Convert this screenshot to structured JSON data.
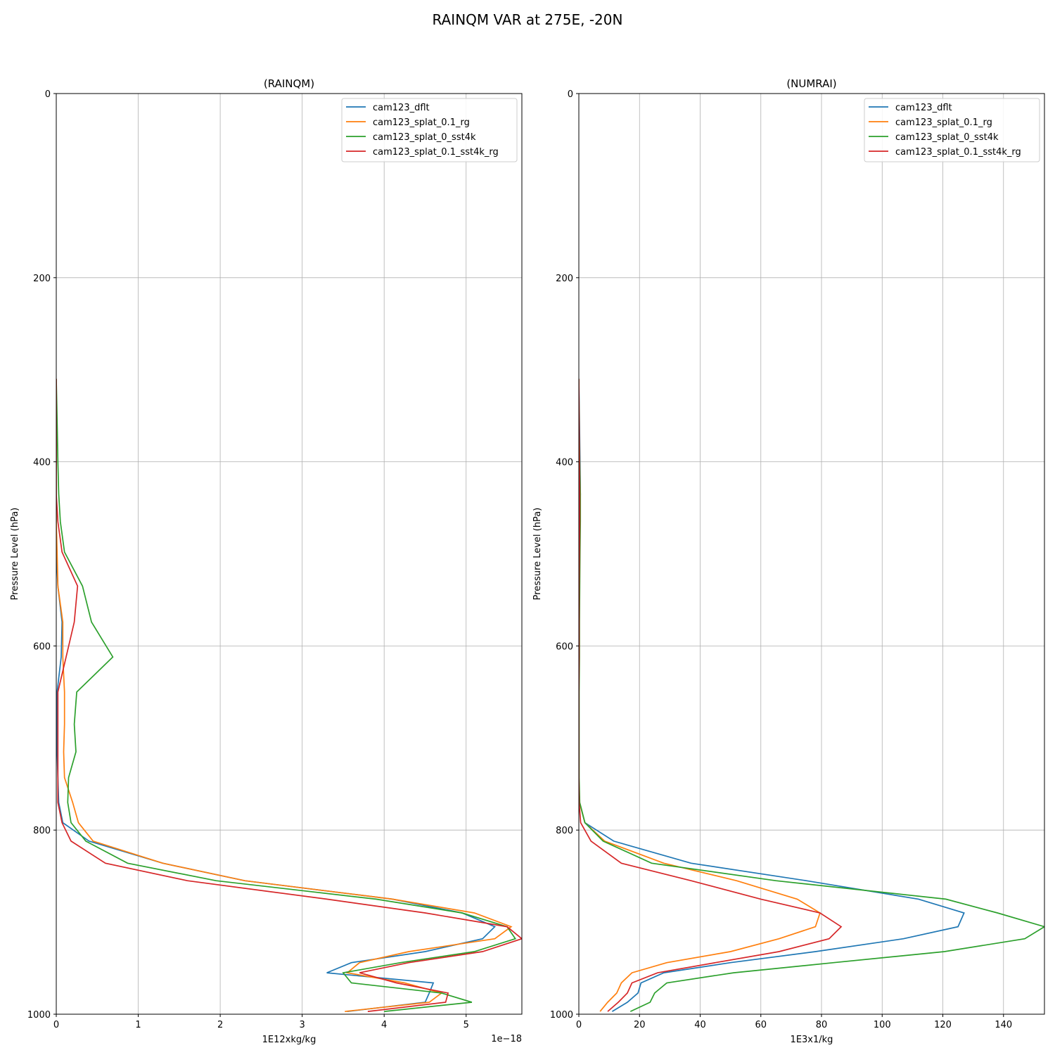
{
  "figure": {
    "suptitle": "RAINQM VAR at 275E, -20N"
  },
  "chart_data": [
    {
      "type": "line",
      "title": "(RAINQM)",
      "xlabel": "1E12xkg/kg",
      "ylabel": "Pressure Level (hPa)",
      "x_offset_text": "1e−18",
      "xlim": [
        0,
        5.68
      ],
      "ylim": [
        1000,
        0
      ],
      "xticks": [
        0,
        1,
        2,
        3,
        4,
        5
      ],
      "yticks": [
        0,
        200,
        400,
        600,
        800,
        1000
      ],
      "grid": true,
      "legend_position": "upper right",
      "levels": [
        310,
        355,
        400,
        435,
        465,
        498,
        535,
        574,
        612,
        650,
        685,
        715,
        743,
        770,
        792,
        812,
        836,
        855,
        875,
        890,
        905,
        918,
        932,
        944,
        955,
        966,
        977,
        987,
        997
      ],
      "series": [
        {
          "name": "cam123_dflt",
          "color": "#1f77b4",
          "x": [
            0.0,
            0.0,
            0.0,
            0.0,
            0.0,
            0.0,
            0.02,
            0.07,
            0.06,
            0.01,
            0.01,
            0.01,
            0.02,
            0.03,
            0.08,
            0.4,
            1.3,
            2.3,
            4.1,
            4.95,
            5.35,
            5.2,
            4.5,
            3.6,
            3.3,
            4.6,
            4.55,
            4.5,
            3.55
          ]
        },
        {
          "name": "cam123_splat_0.1_rg",
          "color": "#ff7f0e",
          "x": [
            0.0,
            0.0,
            0.0,
            0.0,
            0.0,
            0.01,
            0.02,
            0.08,
            0.08,
            0.1,
            0.1,
            0.09,
            0.1,
            0.2,
            0.27,
            0.45,
            1.3,
            2.3,
            4.1,
            5.1,
            5.55,
            5.35,
            4.3,
            3.7,
            3.55,
            4.25,
            4.7,
            4.55,
            3.52
          ]
        },
        {
          "name": "cam123_splat_0_sst4k",
          "color": "#2ca02c",
          "x": [
            0.0,
            0.01,
            0.02,
            0.03,
            0.05,
            0.1,
            0.32,
            0.43,
            0.69,
            0.25,
            0.22,
            0.24,
            0.15,
            0.14,
            0.18,
            0.36,
            0.87,
            1.95,
            3.9,
            4.95,
            5.5,
            5.6,
            5.1,
            4.2,
            3.5,
            3.6,
            4.7,
            5.07,
            4.0
          ]
        },
        {
          "name": "cam123_splat_0.1_sst4k_rg",
          "color": "#d62728",
          "x": [
            0.0,
            0.0,
            0.0,
            0.0,
            0.02,
            0.07,
            0.26,
            0.22,
            0.12,
            0.02,
            0.02,
            0.02,
            0.02,
            0.02,
            0.07,
            0.18,
            0.6,
            1.6,
            3.3,
            4.5,
            5.5,
            5.68,
            5.2,
            4.3,
            3.7,
            4.15,
            4.78,
            4.75,
            3.8
          ]
        }
      ]
    },
    {
      "type": "line",
      "title": "(NUMRAI)",
      "xlabel": "1E3x1/kg",
      "ylabel": "Pressure Level (hPa)",
      "xlim": [
        0,
        153.5
      ],
      "ylim": [
        1000,
        0
      ],
      "xticks": [
        0,
        20,
        40,
        60,
        80,
        100,
        120,
        140
      ],
      "yticks": [
        0,
        200,
        400,
        600,
        800,
        1000
      ],
      "grid": true,
      "legend_position": "upper right",
      "levels": [
        310,
        355,
        400,
        435,
        465,
        498,
        535,
        574,
        612,
        650,
        685,
        715,
        743,
        770,
        792,
        812,
        836,
        855,
        875,
        890,
        905,
        918,
        932,
        944,
        955,
        966,
        977,
        987,
        997
      ],
      "series": [
        {
          "name": "cam123_dflt",
          "color": "#1f77b4",
          "x": [
            0.0,
            0.2,
            0.4,
            0.5,
            0.4,
            0.3,
            0.2,
            0.1,
            0.1,
            0.0,
            0.0,
            0.0,
            0.0,
            0.2,
            2.0,
            11.5,
            37.0,
            75.0,
            112.0,
            127.0,
            125.0,
            107.0,
            78.0,
            50.0,
            28.0,
            20.5,
            19.5,
            16.0,
            11.0
          ]
        },
        {
          "name": "cam123_splat_0.1_rg",
          "color": "#ff7f0e",
          "x": [
            0.0,
            0.1,
            0.2,
            0.3,
            0.3,
            0.2,
            0.1,
            0.1,
            0.1,
            0.0,
            0.0,
            0.0,
            0.0,
            0.2,
            2.0,
            8.5,
            28.0,
            52.0,
            72.0,
            79.5,
            78.0,
            66.0,
            50.0,
            29.0,
            17.5,
            14.0,
            12.5,
            9.5,
            7.0
          ]
        },
        {
          "name": "cam123_splat_0_sst4k",
          "color": "#2ca02c",
          "x": [
            0.0,
            0.1,
            0.3,
            0.5,
            0.5,
            0.4,
            0.3,
            0.2,
            0.2,
            0.1,
            0.1,
            0.1,
            0.1,
            0.3,
            2.0,
            8.0,
            24.0,
            65.0,
            121.0,
            138.0,
            153.5,
            147.0,
            120.5,
            84.0,
            51.0,
            29.0,
            25.0,
            23.5,
            17.0
          ]
        },
        {
          "name": "cam123_splat_0.1_sst4k_rg",
          "color": "#d62728",
          "x": [
            0.0,
            0.1,
            0.2,
            0.3,
            0.3,
            0.2,
            0.1,
            0.1,
            0.1,
            0.0,
            0.0,
            0.0,
            0.0,
            0.1,
            0.6,
            4.0,
            14.0,
            37.0,
            60.0,
            79.5,
            86.5,
            82.5,
            66.0,
            45.0,
            26.0,
            17.5,
            16.0,
            13.0,
            9.5
          ]
        }
      ]
    }
  ]
}
